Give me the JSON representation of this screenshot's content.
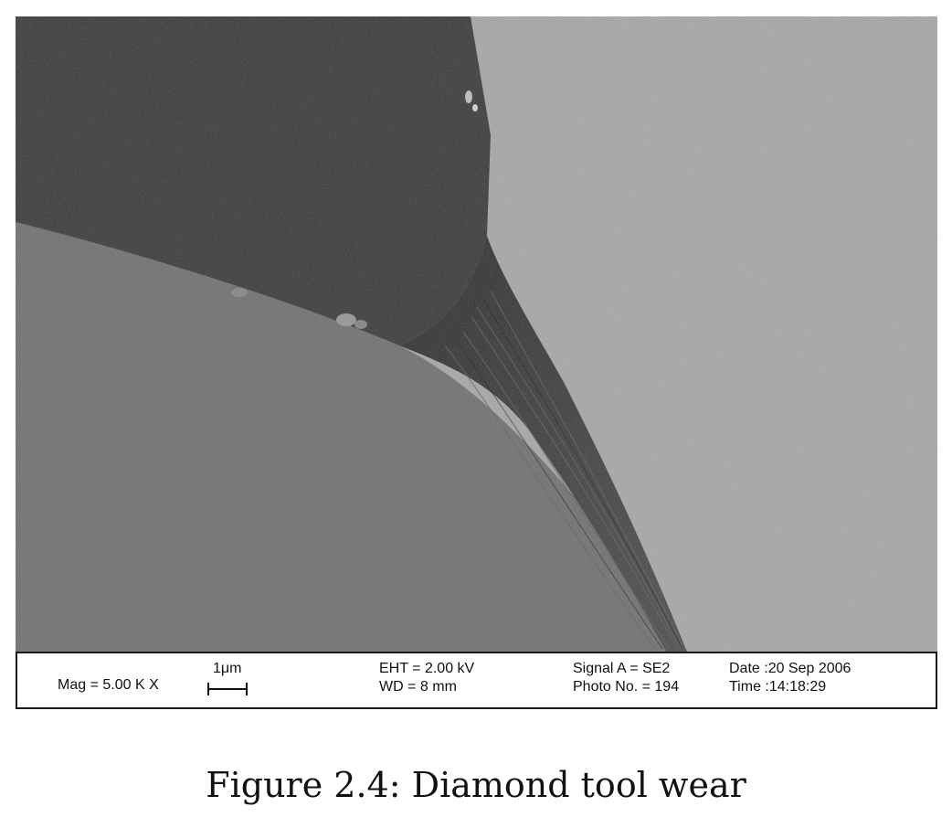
{
  "databar": {
    "mag": "Mag =  5.00 K X",
    "scale_label": "1μm",
    "eht": "EHT =  2.00 kV",
    "wd": "WD =    8 mm",
    "signal": "Signal A = SE2",
    "photo": "Photo No. = 194",
    "date": "Date :20 Sep 2006",
    "time": "Time :14:18:29"
  },
  "caption": "Figure 2.4: Diamond tool wear",
  "colors": {
    "upper_facet": "#474747",
    "lower_surface": "#787878",
    "background_right": "#a8a8a8",
    "text": "#111111"
  }
}
